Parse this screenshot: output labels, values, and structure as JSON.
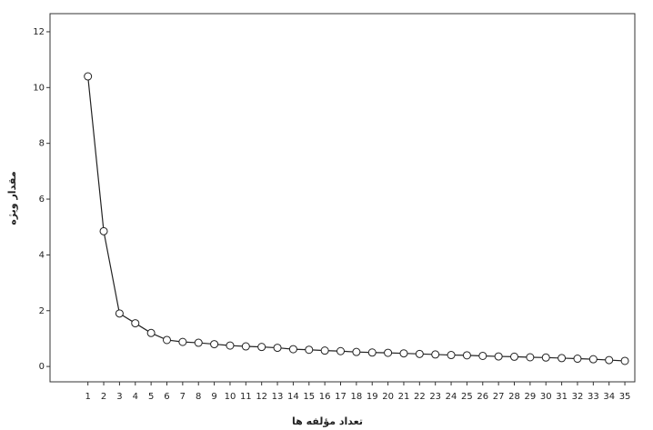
{
  "chart_data": {
    "type": "line",
    "x_label": "تعداد مؤلفه ها",
    "y_label": "مقدار ویژه",
    "x": [
      1,
      2,
      3,
      4,
      5,
      6,
      7,
      8,
      9,
      10,
      11,
      12,
      13,
      14,
      15,
      16,
      17,
      18,
      19,
      20,
      21,
      22,
      23,
      24,
      25,
      26,
      27,
      28,
      29,
      30,
      31,
      32,
      33,
      34,
      35
    ],
    "series": [
      {
        "color": "#222222",
        "values": [
          10.4,
          4.85,
          1.9,
          1.55,
          1.2,
          0.95,
          0.88,
          0.85,
          0.8,
          0.75,
          0.72,
          0.7,
          0.67,
          0.62,
          0.6,
          0.57,
          0.55,
          0.52,
          0.5,
          0.49,
          0.47,
          0.45,
          0.43,
          0.41,
          0.4,
          0.38,
          0.36,
          0.35,
          0.33,
          0.32,
          0.3,
          0.28,
          0.26,
          0.23,
          0.2
        ]
      }
    ],
    "xlim": [
      -1.4,
      35.63
    ],
    "ylim": [
      -0.55,
      12.65
    ],
    "xticks": [
      1,
      2,
      3,
      4,
      5,
      6,
      7,
      8,
      9,
      10,
      11,
      12,
      13,
      14,
      15,
      16,
      17,
      18,
      19,
      20,
      21,
      22,
      23,
      24,
      25,
      26,
      27,
      28,
      29,
      30,
      31,
      32,
      33,
      34,
      35
    ],
    "yticks": [
      0,
      2,
      4,
      6,
      8,
      10,
      12
    ]
  }
}
